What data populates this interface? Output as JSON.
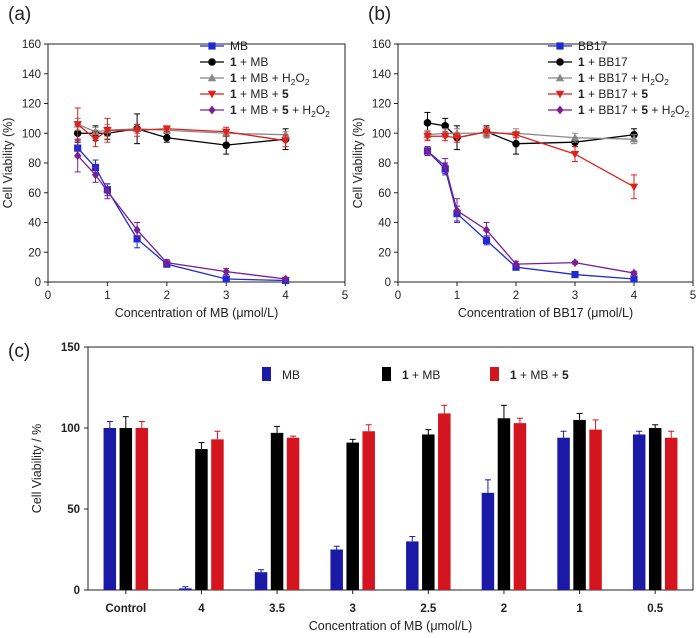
{
  "chart_data": [
    {
      "panel_label": "(a)",
      "type": "line",
      "xlabel": "Concentration of MB (μmol/L)",
      "ylabel": "Cell Viability (%)",
      "xlim": [
        0,
        5
      ],
      "ylim": [
        0,
        160
      ],
      "xticks": [
        "0",
        "1",
        "2",
        "3",
        "4",
        "5"
      ],
      "yticks": [
        "0",
        "20",
        "40",
        "60",
        "80",
        "100",
        "120",
        "140",
        "160"
      ],
      "legend_position": "top-right",
      "series": [
        {
          "name": "MB",
          "legend": [
            {
              "t": "MB",
              "b": false
            }
          ],
          "color": "#1f2bd0",
          "marker": "square",
          "x": [
            0.5,
            0.8,
            1,
            1.5,
            2,
            3,
            4
          ],
          "y": [
            90,
            77,
            62,
            29,
            12,
            2,
            1
          ],
          "err": [
            6,
            5,
            4,
            6,
            2,
            1,
            0.5
          ]
        },
        {
          "name": "1 + MB",
          "legend": [
            {
              "t": "1",
              "b": true
            },
            {
              "t": " + MB",
              "b": false
            }
          ],
          "color": "#000000",
          "marker": "circle",
          "x": [
            0.5,
            0.8,
            1,
            1.5,
            2,
            3,
            4
          ],
          "y": [
            100,
            100,
            100,
            103,
            97,
            92,
            96
          ],
          "err": [
            6,
            5,
            4,
            10,
            3,
            6,
            7
          ]
        },
        {
          "name": "1 + MB + H2O2",
          "legend": [
            {
              "t": "1",
              "b": true
            },
            {
              "t": " + MB + H",
              "b": false
            },
            {
              "t": "2",
              "sub": true
            },
            {
              "t": "O",
              "b": false
            },
            {
              "t": "2",
              "sub": true
            }
          ],
          "color": "#888888",
          "marker": "triangle-up",
          "x": [
            0.5,
            0.8,
            1,
            1.5,
            2,
            3,
            4
          ],
          "y": [
            106,
            101,
            102,
            103,
            102,
            100,
            99
          ],
          "err": [
            4,
            3,
            4,
            3,
            2,
            2,
            2
          ]
        },
        {
          "name": "1 + MB + 5",
          "legend": [
            {
              "t": "1",
              "b": true
            },
            {
              "t": " + MB + ",
              "b": false
            },
            {
              "t": "5",
              "b": true
            }
          ],
          "color": "#e0201b",
          "marker": "triangle-down",
          "x": [
            0.5,
            0.8,
            1,
            1.5,
            2,
            3,
            4
          ],
          "y": [
            106,
            96,
            102,
            102,
            103,
            101,
            95
          ],
          "err": [
            11,
            5,
            8,
            4,
            2,
            3,
            4
          ]
        },
        {
          "name": "1 + MB + 5 + H2O2",
          "legend": [
            {
              "t": "1",
              "b": true
            },
            {
              "t": " + MB + ",
              "b": false
            },
            {
              "t": "5",
              "b": true
            },
            {
              "t": " + H",
              "b": false
            },
            {
              "t": "2",
              "sub": true
            },
            {
              "t": "O",
              "b": false
            },
            {
              "t": "2",
              "sub": true
            }
          ],
          "color": "#7b1e94",
          "marker": "diamond",
          "x": [
            0.5,
            0.8,
            1,
            1.5,
            2,
            3,
            4
          ],
          "y": [
            85,
            72,
            61,
            35,
            13,
            7,
            2
          ],
          "err": [
            11,
            5,
            5,
            5,
            2,
            2,
            1
          ]
        }
      ]
    },
    {
      "panel_label": "(b)",
      "type": "line",
      "xlabel": "Concentration of BB17 (μmol/L)",
      "ylabel": "Cell Viability (%)",
      "xlim": [
        0,
        5
      ],
      "ylim": [
        0,
        160
      ],
      "xticks": [
        "0",
        "1",
        "2",
        "3",
        "4",
        "5"
      ],
      "yticks": [
        "0",
        "20",
        "40",
        "60",
        "80",
        "100",
        "120",
        "140",
        "160"
      ],
      "legend_position": "top-right",
      "series": [
        {
          "name": "BB17",
          "legend": [
            {
              "t": "BB17",
              "b": false
            }
          ],
          "color": "#1f2bd0",
          "marker": "square",
          "x": [
            0.5,
            0.8,
            1,
            1.5,
            2,
            3,
            4
          ],
          "y": [
            88,
            76,
            46,
            28,
            10,
            5,
            2
          ],
          "err": [
            3,
            4,
            5,
            3,
            2,
            1,
            1
          ]
        },
        {
          "name": "1 + BB17",
          "legend": [
            {
              "t": "1",
              "b": true
            },
            {
              "t": " + BB17",
              "b": false
            }
          ],
          "color": "#000000",
          "marker": "circle",
          "x": [
            0.5,
            0.8,
            1,
            1.5,
            2,
            3,
            4
          ],
          "y": [
            107,
            105,
            97,
            101,
            93,
            94,
            99
          ],
          "err": [
            7,
            5,
            8,
            4,
            7,
            3,
            4
          ]
        },
        {
          "name": "1 + BB17 + H2O2",
          "legend": [
            {
              "t": "1",
              "b": true
            },
            {
              "t": " + BB17 + H",
              "b": false
            },
            {
              "t": "2",
              "sub": true
            },
            {
              "t": "O",
              "b": false
            },
            {
              "t": "2",
              "sub": true
            }
          ],
          "color": "#888888",
          "marker": "triangle-up",
          "x": [
            0.5,
            0.8,
            1,
            1.5,
            2,
            3,
            4
          ],
          "y": [
            99,
            100,
            100,
            100,
            100,
            97,
            96
          ],
          "err": [
            3,
            3,
            3,
            3,
            3,
            3,
            3
          ]
        },
        {
          "name": "1 + BB17 + 5",
          "legend": [
            {
              "t": "1",
              "b": true
            },
            {
              "t": " + BB17 + ",
              "b": false
            },
            {
              "t": "5",
              "b": true
            }
          ],
          "color": "#e0201b",
          "marker": "triangle-down",
          "x": [
            0.5,
            0.8,
            1,
            1.5,
            2,
            3,
            4
          ],
          "y": [
            98,
            98,
            97,
            101,
            99,
            86,
            64
          ],
          "err": [
            3,
            3,
            3,
            3,
            2,
            5,
            8
          ]
        },
        {
          "name": "1 + BB17 + 5 + H2O2",
          "legend": [
            {
              "t": "1",
              "b": true
            },
            {
              "t": " + BB17 + ",
              "b": false
            },
            {
              "t": "5",
              "b": true
            },
            {
              "t": " + H",
              "b": false
            },
            {
              "t": "2",
              "sub": true
            },
            {
              "t": "O",
              "b": false
            },
            {
              "t": "2",
              "sub": true
            }
          ],
          "color": "#7b1e94",
          "marker": "diamond",
          "x": [
            0.5,
            0.8,
            1,
            1.5,
            2,
            3,
            4
          ],
          "y": [
            88,
            78,
            48,
            35,
            12,
            13,
            6
          ],
          "err": [
            3,
            5,
            8,
            5,
            2,
            1,
            1
          ]
        }
      ]
    },
    {
      "panel_label": "(c)",
      "type": "bar",
      "xlabel": "Concentration of MB (μmol/L)",
      "ylabel": "Cell Viability / %",
      "ylim": [
        0,
        150
      ],
      "yticks": [
        "0",
        "50",
        "100",
        "150"
      ],
      "categories": [
        "Control",
        "4",
        "3.5",
        "3",
        "2.5",
        "2",
        "1",
        "0.5"
      ],
      "legend_position": "top-center",
      "series": [
        {
          "name": "MB",
          "legend": [
            {
              "t": "MB",
              "b": false
            }
          ],
          "color": "#1a1aa6",
          "values": [
            100,
            1,
            11,
            25,
            30,
            60,
            94,
            96
          ],
          "err": [
            4,
            1,
            1.5,
            2,
            3,
            8,
            4,
            2
          ]
        },
        {
          "name": "1 + MB",
          "legend": [
            {
              "t": "1",
              "b": true
            },
            {
              "t": " + MB",
              "b": false
            }
          ],
          "color": "#000000",
          "values": [
            100,
            87,
            97,
            91,
            96,
            106,
            105,
            100
          ],
          "err": [
            7,
            4,
            4,
            2,
            3,
            8,
            4,
            2
          ]
        },
        {
          "name": "1 + MB + 5",
          "legend": [
            {
              "t": "1",
              "b": true
            },
            {
              "t": " + MB + ",
              "b": false
            },
            {
              "t": "5",
              "b": true
            }
          ],
          "color": "#d4141e",
          "values": [
            100,
            93,
            94,
            98,
            109,
            103,
            99,
            94
          ],
          "err": [
            4,
            5,
            1,
            4,
            5,
            3,
            6,
            4
          ]
        }
      ]
    }
  ]
}
